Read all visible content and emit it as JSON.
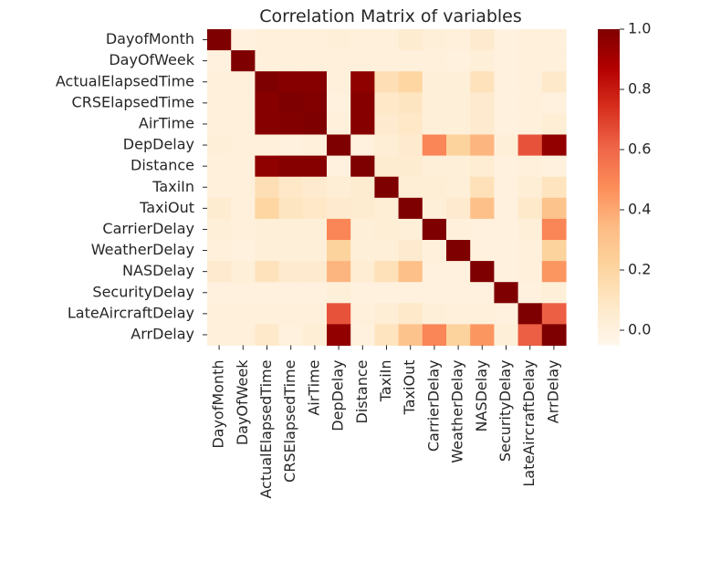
{
  "chart_data": {
    "type": "heatmap",
    "title": "Correlation Matrix of variables",
    "xlabel": "",
    "ylabel": "",
    "variables": [
      "DayofMonth",
      "DayOfWeek",
      "ActualElapsedTime",
      "CRSElapsedTime",
      "AirTime",
      "DepDelay",
      "Distance",
      "TaxiIn",
      "TaxiOut",
      "CarrierDelay",
      "WeatherDelay",
      "NASDelay",
      "SecurityDelay",
      "LateAircraftDelay",
      "ArrDelay"
    ],
    "values": [
      [
        1.0,
        0.0,
        0.01,
        0.01,
        0.01,
        0.02,
        0.01,
        0.01,
        0.05,
        0.02,
        0.01,
        0.06,
        0.0,
        0.01,
        0.01
      ],
      [
        0.0,
        1.0,
        0.01,
        0.01,
        0.01,
        0.01,
        0.01,
        0.01,
        0.01,
        0.01,
        0.0,
        0.02,
        0.0,
        0.01,
        0.01
      ],
      [
        0.01,
        0.01,
        1.0,
        0.98,
        0.98,
        0.01,
        0.96,
        0.14,
        0.2,
        0.02,
        0.02,
        0.12,
        0.0,
        0.01,
        0.07
      ],
      [
        0.01,
        0.01,
        0.98,
        1.0,
        0.99,
        0.0,
        0.98,
        0.08,
        0.1,
        0.02,
        0.02,
        0.06,
        0.0,
        0.01,
        0.0
      ],
      [
        0.01,
        0.01,
        0.98,
        0.99,
        1.0,
        0.01,
        0.98,
        0.06,
        0.08,
        0.02,
        0.02,
        0.06,
        0.0,
        0.01,
        0.03
      ],
      [
        0.02,
        0.01,
        0.01,
        0.0,
        0.01,
        1.0,
        0.0,
        0.03,
        0.06,
        0.5,
        0.22,
        0.36,
        0.02,
        0.65,
        0.95
      ],
      [
        0.01,
        0.01,
        0.96,
        0.98,
        0.98,
        0.0,
        1.0,
        0.05,
        0.05,
        0.02,
        0.02,
        0.04,
        0.0,
        0.01,
        0.0
      ],
      [
        0.01,
        0.01,
        0.14,
        0.08,
        0.06,
        0.03,
        0.05,
        1.0,
        0.03,
        0.03,
        0.02,
        0.13,
        0.0,
        0.03,
        0.11
      ],
      [
        0.05,
        0.01,
        0.2,
        0.1,
        0.08,
        0.06,
        0.05,
        0.03,
        1.0,
        0.02,
        0.06,
        0.32,
        0.0,
        0.07,
        0.3
      ],
      [
        0.02,
        0.01,
        0.02,
        0.02,
        0.02,
        0.5,
        0.02,
        0.03,
        0.02,
        1.0,
        0.01,
        0.0,
        0.0,
        0.02,
        0.5
      ],
      [
        0.01,
        0.0,
        0.02,
        0.02,
        0.02,
        0.22,
        0.02,
        0.02,
        0.06,
        0.01,
        1.0,
        0.0,
        0.0,
        0.01,
        0.22
      ],
      [
        0.06,
        0.02,
        0.12,
        0.06,
        0.06,
        0.36,
        0.04,
        0.13,
        0.32,
        0.0,
        0.0,
        1.0,
        0.0,
        0.01,
        0.45
      ],
      [
        0.0,
        0.0,
        0.0,
        0.0,
        0.0,
        0.02,
        0.0,
        0.0,
        0.0,
        0.0,
        0.0,
        0.0,
        1.0,
        0.0,
        0.02
      ],
      [
        0.01,
        0.01,
        0.01,
        0.01,
        0.01,
        0.65,
        0.01,
        0.03,
        0.07,
        0.02,
        0.01,
        0.01,
        0.0,
        1.0,
        0.62
      ],
      [
        0.01,
        0.01,
        0.07,
        0.0,
        0.03,
        0.95,
        0.0,
        0.11,
        0.3,
        0.5,
        0.22,
        0.45,
        0.02,
        0.62,
        1.0
      ]
    ],
    "colorbar": {
      "range": [
        -0.05,
        1.0
      ],
      "ticks": [
        0.0,
        0.2,
        0.4,
        0.6,
        0.8,
        1.0
      ],
      "tick_labels": [
        "0.0",
        "0.2",
        "0.4",
        "0.6",
        "0.8",
        "1.0"
      ],
      "colormap": "OrRd"
    },
    "colors": [
      "#fff7ec",
      "#fee8c8",
      "#fdd49e",
      "#fdbb84",
      "#fc8d59",
      "#ef6548",
      "#d7301f",
      "#b30000",
      "#7f0000"
    ]
  }
}
